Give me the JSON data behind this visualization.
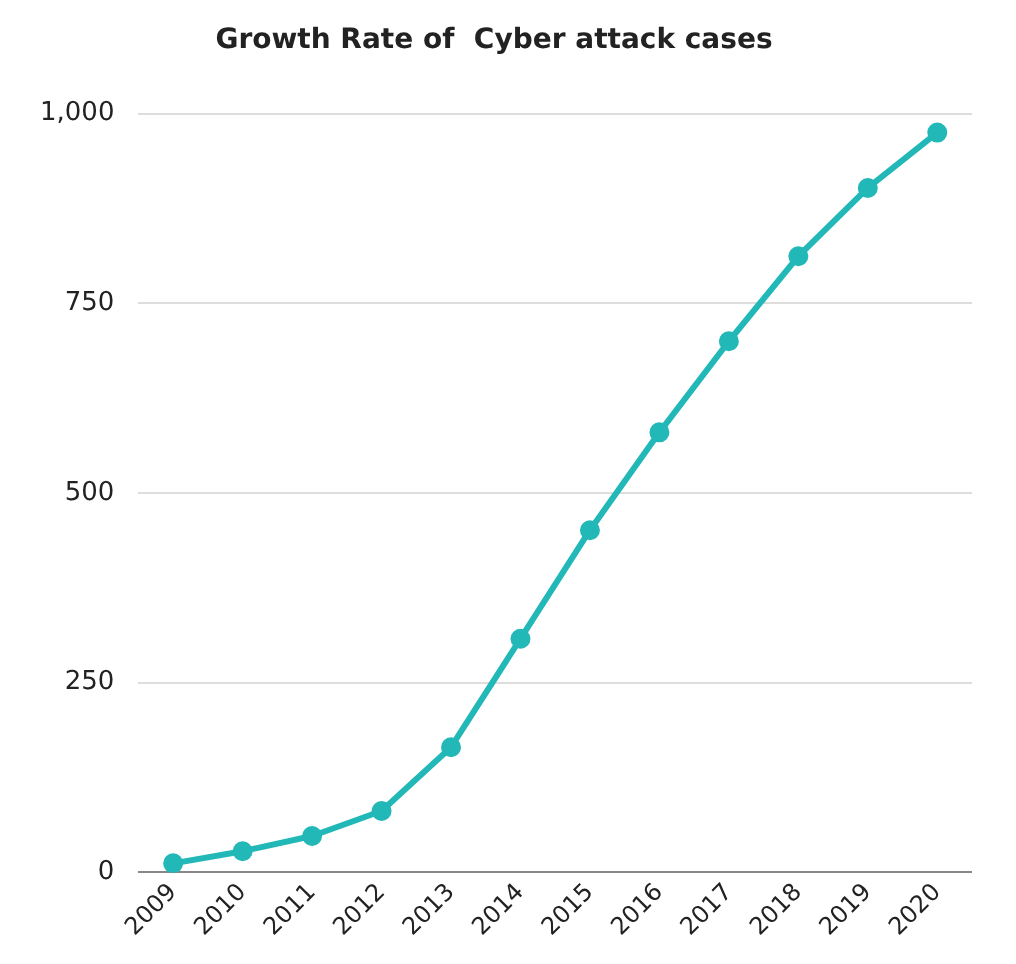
{
  "chart_data": {
    "type": "line",
    "title": "Growth Rate of  Cyber attack cases",
    "categories": [
      "2009",
      "2010",
      "2011",
      "2012",
      "2013",
      "2014",
      "2015",
      "2016",
      "2017",
      "2018",
      "2019",
      "2020"
    ],
    "series": [
      {
        "color": "#22b8b8",
        "values": [
          12,
          28,
          48,
          81,
          165,
          308,
          451,
          580,
          700,
          812,
          902,
          975
        ]
      }
    ],
    "ylim": [
      0,
      1000
    ],
    "yticks": [
      0,
      {
        "value": 250,
        "label": "250"
      },
      {
        "value": 500,
        "label": "500"
      },
      {
        "value": 750,
        "label": "750"
      },
      {
        "value": 1000,
        "label": "1,000"
      }
    ],
    "grid": "y",
    "legend": false,
    "marker": "circle",
    "line_style": "solid"
  }
}
